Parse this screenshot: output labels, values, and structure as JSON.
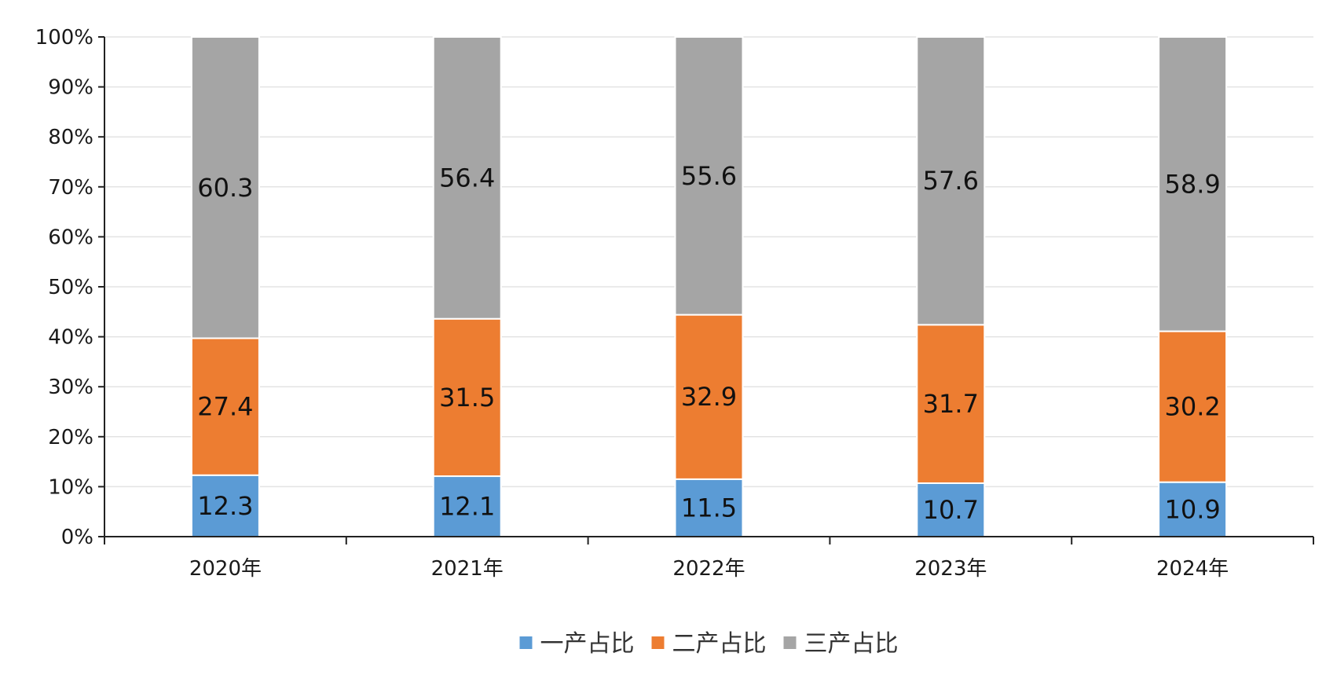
{
  "chart_data": {
    "type": "bar",
    "stacked": true,
    "categories": [
      "2020年",
      "2021年",
      "2022年",
      "2023年",
      "2024年"
    ],
    "series": [
      {
        "name": "一产占比",
        "values": [
          12.3,
          12.1,
          11.5,
          10.7,
          10.9
        ],
        "color": "#5b9bd5"
      },
      {
        "name": "二产占比",
        "values": [
          27.4,
          31.5,
          32.9,
          31.7,
          30.2
        ],
        "color": "#ed7d31"
      },
      {
        "name": "三产占比",
        "values": [
          60.3,
          56.4,
          55.6,
          57.6,
          58.9
        ],
        "color": "#a5a5a5"
      }
    ],
    "ylim": [
      0,
      100
    ],
    "y_ticks": [
      "0%",
      "10%",
      "20%",
      "30%",
      "40%",
      "50%",
      "60%",
      "70%",
      "80%",
      "90%",
      "100%"
    ],
    "grid": true,
    "legend_position": "bottom",
    "title": "",
    "xlabel": "",
    "ylabel": ""
  }
}
